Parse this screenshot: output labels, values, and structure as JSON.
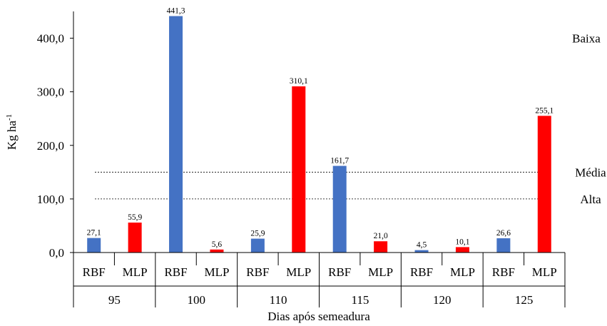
{
  "chart_data": {
    "type": "bar",
    "title": "",
    "xlabel": "Dias após semeadura",
    "ylabel": "Kg ha-1",
    "ylabel_base": "Kg ha",
    "ylabel_sup": "-1",
    "ylim": [
      0,
      450
    ],
    "yticks": [
      0,
      100,
      200,
      300,
      400
    ],
    "ytick_labels": [
      "0,0",
      "100,0",
      "200,0",
      "300,0",
      "400,0"
    ],
    "grid": false,
    "groups": [
      "95",
      "100",
      "110",
      "115",
      "120",
      "125"
    ],
    "bars": [
      {
        "group": "95",
        "label": "RBF",
        "value": 27.1,
        "value_label": "27,1",
        "color": "#4472C4"
      },
      {
        "group": "95",
        "label": "MLP",
        "value": 55.9,
        "value_label": "55,9",
        "color": "#FF0000"
      },
      {
        "group": "100",
        "label": "RBF",
        "value": 441.3,
        "value_label": "441,3",
        "color": "#4472C4"
      },
      {
        "group": "100",
        "label": "MLP",
        "value": 5.6,
        "value_label": "5,6",
        "color": "#FF0000"
      },
      {
        "group": "110",
        "label": "RBF",
        "value": 25.9,
        "value_label": "25,9",
        "color": "#4472C4"
      },
      {
        "group": "110",
        "label": "MLP",
        "value": 310.1,
        "value_label": "310,1",
        "color": "#FF0000"
      },
      {
        "group": "115",
        "label": "RBF",
        "value": 161.7,
        "value_label": "161,7",
        "color": "#4472C4"
      },
      {
        "group": "115",
        "label": "MLP",
        "value": 21.0,
        "value_label": "21,0",
        "color": "#FF0000"
      },
      {
        "group": "120",
        "label": "RBF",
        "value": 4.5,
        "value_label": "4,5",
        "color": "#4472C4"
      },
      {
        "group": "120",
        "label": "MLP",
        "value": 10.1,
        "value_label": "10,1",
        "color": "#FF0000"
      },
      {
        "group": "125",
        "label": "RBF",
        "value": 26.6,
        "value_label": "26,6",
        "color": "#4472C4"
      },
      {
        "group": "125",
        "label": "MLP",
        "value": 255.1,
        "value_label": "255,1",
        "color": "#FF0000"
      }
    ],
    "reference_lines": [
      {
        "label": "Média",
        "value": 150
      },
      {
        "label": "Alta",
        "value": 100
      }
    ],
    "annotations": [
      {
        "label": "Baixa",
        "value": 400
      }
    ]
  }
}
